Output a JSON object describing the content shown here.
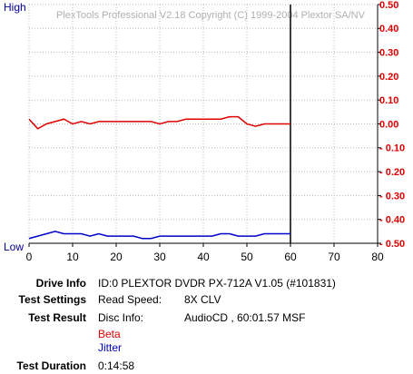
{
  "chart_data": {
    "type": "line",
    "title": "PlexTools Professional V2.18 Copyright (C) 1999-2004 Plextor SA/NV",
    "y_high_label": "High",
    "y_low_label": "Low",
    "x": [
      0,
      2,
      4,
      6,
      8,
      10,
      12,
      14,
      16,
      18,
      20,
      22,
      24,
      26,
      28,
      30,
      32,
      34,
      36,
      38,
      40,
      42,
      44,
      46,
      48,
      50,
      52,
      54,
      56,
      58,
      60
    ],
    "series": [
      {
        "name": "Beta",
        "color": "#e00000",
        "values": [
          0.02,
          -0.02,
          0.0,
          0.01,
          0.02,
          0.0,
          0.01,
          0.0,
          0.01,
          0.01,
          0.01,
          0.01,
          0.01,
          0.01,
          0.01,
          0.0,
          0.01,
          0.01,
          0.02,
          0.02,
          0.02,
          0.02,
          0.02,
          0.03,
          0.03,
          0.0,
          -0.01,
          0.0,
          0.0,
          0.0,
          0.0
        ]
      },
      {
        "name": "Jitter",
        "color": "#0000c8",
        "values": [
          -0.48,
          -0.47,
          -0.46,
          -0.45,
          -0.46,
          -0.46,
          -0.46,
          -0.47,
          -0.46,
          -0.47,
          -0.47,
          -0.47,
          -0.47,
          -0.48,
          -0.48,
          -0.47,
          -0.47,
          -0.47,
          -0.47,
          -0.47,
          -0.47,
          -0.47,
          -0.46,
          -0.46,
          -0.47,
          -0.47,
          -0.47,
          -0.46,
          -0.46,
          -0.46,
          -0.46
        ]
      }
    ],
    "end_marker": 60,
    "xlim": [
      0,
      80
    ],
    "xticks": [
      0,
      10,
      20,
      30,
      40,
      50,
      60,
      70,
      80
    ],
    "ylim": [
      -0.5,
      0.5
    ],
    "yticks": [
      {
        "value": 0.5,
        "label": "0.50"
      },
      {
        "value": 0.4,
        "label": "0.40"
      },
      {
        "value": 0.3,
        "label": "0.30"
      },
      {
        "value": 0.2,
        "label": "0.20"
      },
      {
        "value": 0.1,
        "label": "0.10"
      },
      {
        "value": 0,
        "label": "0.00"
      },
      {
        "value": -0.1,
        "label": "- 0.10"
      },
      {
        "value": -0.2,
        "label": "- 0.20"
      },
      {
        "value": -0.3,
        "label": "- 0.30"
      },
      {
        "value": -0.4,
        "label": "- 0.40"
      },
      {
        "value": -0.5,
        "label": "- 0.50"
      }
    ],
    "grid": true
  },
  "info": {
    "drive_label": "Drive Info",
    "drive_value": "ID:0 PLEXTOR DVDR PX-712A V1.05 (#101831)",
    "settings_label": "Test Settings",
    "settings_key": "Read Speed:",
    "settings_value": "8X CLV",
    "result_label": "Test Result",
    "result_key": "Disc Info:",
    "result_value": "AudioCD , 60:01.57 MSF",
    "duration_label": "Test Duration",
    "duration_value": "0:14:58"
  }
}
